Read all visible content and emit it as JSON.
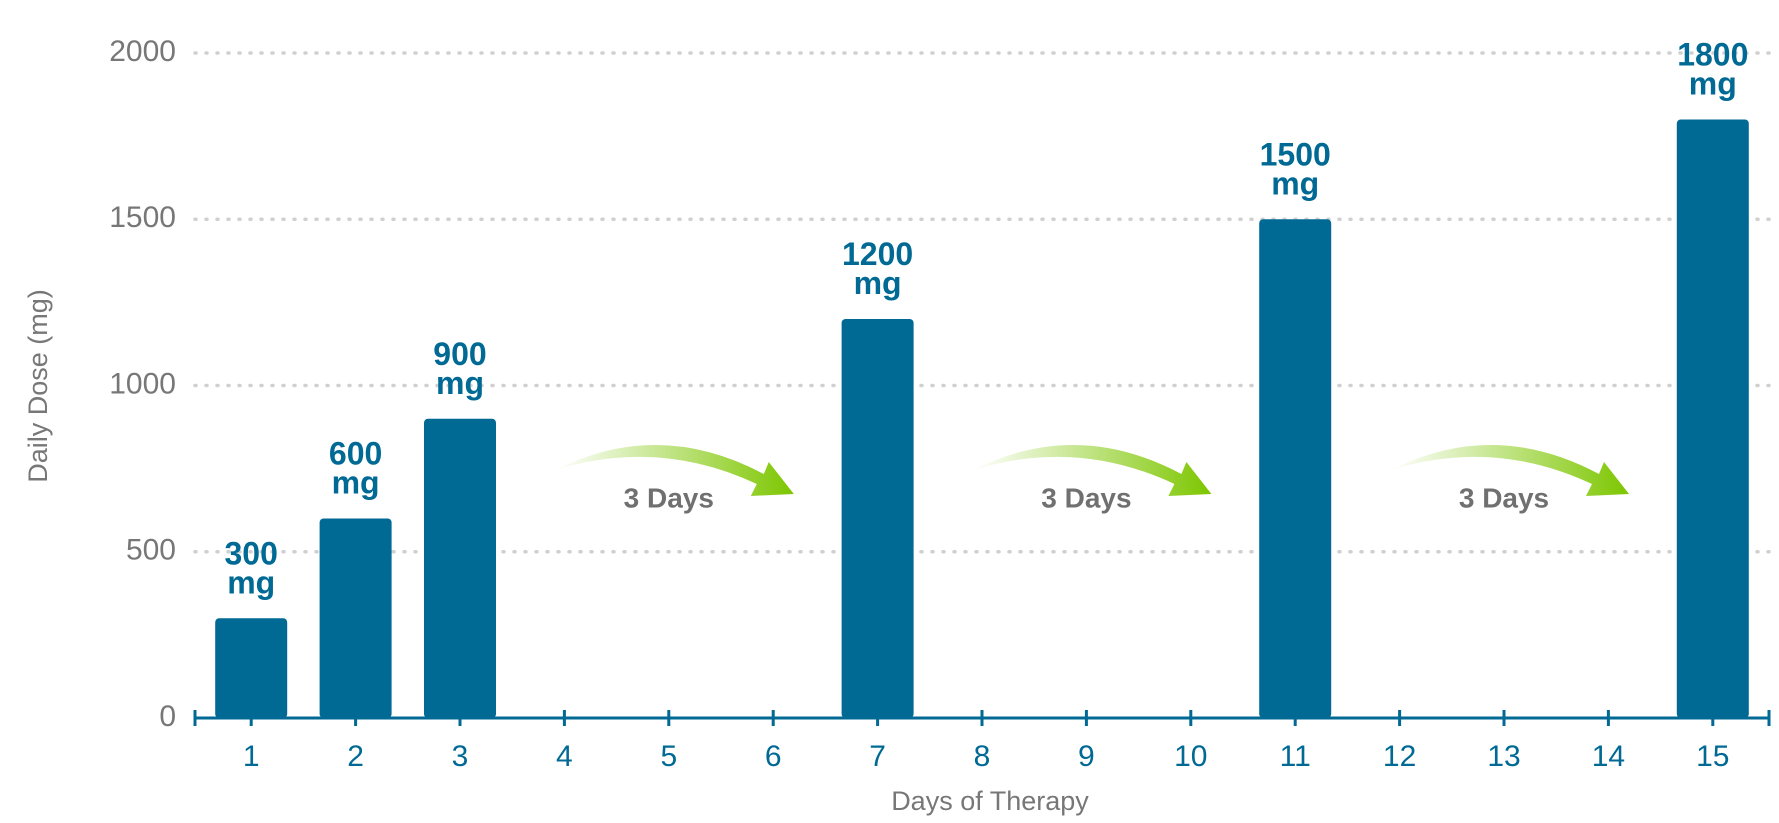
{
  "chart_data": {
    "type": "bar",
    "categories": [
      "1",
      "2",
      "3",
      "4",
      "5",
      "6",
      "7",
      "8",
      "9",
      "10",
      "11",
      "12",
      "13",
      "14",
      "15"
    ],
    "values": [
      300,
      600,
      900,
      null,
      null,
      null,
      1200,
      null,
      null,
      null,
      1500,
      null,
      null,
      null,
      1800
    ],
    "value_labels": [
      "300 mg",
      "600 mg",
      "900 mg",
      null,
      null,
      null,
      "1200 mg",
      null,
      null,
      null,
      "1500 mg",
      null,
      null,
      null,
      "1800 mg"
    ],
    "color": "#006994",
    "ylim": [
      0,
      2000
    ],
    "yticks": [
      0,
      500,
      1000,
      1500,
      2000
    ],
    "grid": true,
    "x_label": "Days of Therapy",
    "y_label": "Daily Dose (mg)",
    "annotations": [
      "3 Days",
      "3 Days",
      "3 Days"
    ]
  }
}
